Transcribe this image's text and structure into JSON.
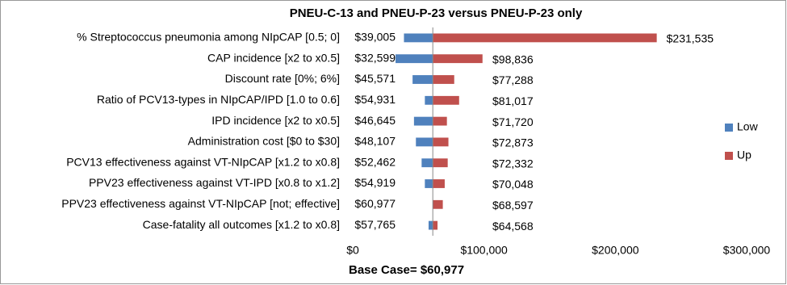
{
  "chart_data": {
    "type": "tornado",
    "title": "PNEU-C-13 and PNEU-P-23 versus PNEU-P-23 only",
    "categories": [
      "% Streptococcus pneumonia among NIpCAP [0.5; 0]",
      "CAP incidence [x2 to x0.5]",
      "Discount rate [0%; 6%]",
      "Ratio of PCV13-types in NIpCAP/IPD [1.0 to 0.6]",
      "IPD incidence [x2 to x0.5]",
      "Administration cost [$0 to $30]",
      "PCV13 effectiveness against VT-NIpCAP [x1.2 to x0.8]",
      "PPV23 effectiveness against VT-IPD [x0.8 to x1.2]",
      "PPV23 effectiveness against VT-NIpCAP [not; effective]",
      "Case-fatality all outcomes [x1.2 to x0.8]"
    ],
    "series": [
      {
        "name": "Low",
        "color": "#4f81bd",
        "values": [
          39005,
          32599,
          45571,
          54931,
          46645,
          48107,
          52462,
          54919,
          60977,
          57765
        ],
        "value_labels": [
          "$39,005",
          "$32,599",
          "$45,571",
          "$54,931",
          "$46,645",
          "$48,107",
          "$52,462",
          "$54,919",
          "$60,977",
          "$57,765"
        ]
      },
      {
        "name": "Up",
        "color": "#c0504d",
        "values": [
          231535,
          98836,
          77288,
          81017,
          71720,
          72873,
          72332,
          70048,
          68597,
          64568
        ],
        "value_labels": [
          "$231,535",
          "$98,836",
          "$77,288",
          "$81,017",
          "$71,720",
          "$72,873",
          "$72,332",
          "$70,048",
          "$68,597",
          "$64,568"
        ]
      }
    ],
    "base_case": {
      "value": 60977,
      "label": "Base Case= $60,977"
    },
    "xlim": [
      0,
      300000
    ],
    "xticks": [
      {
        "value": 0,
        "label": "$0"
      },
      {
        "value": 100000,
        "label": "$100,000"
      },
      {
        "value": 200000,
        "label": "$200,000"
      },
      {
        "value": 300000,
        "label": "$300,000"
      }
    ],
    "legend": "right"
  }
}
